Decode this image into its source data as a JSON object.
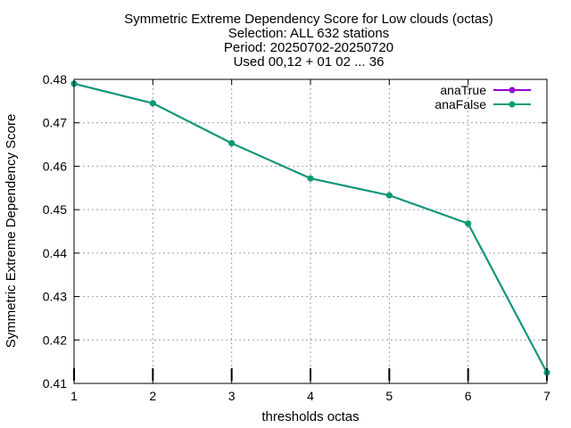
{
  "chart_data": {
    "type": "line",
    "title_lines": [
      "Symmetric Extreme Dependency Score  for Low clouds (octas)",
      "Selection: ALL    632 stations",
      "Period: 20250702-20250720",
      "Used 00,12 + 01 02 ... 36"
    ],
    "xlabel": "thresholds octas",
    "ylabel": "Symmetric Extreme Dependency Score",
    "x": [
      1,
      2,
      3,
      4,
      5,
      6,
      7
    ],
    "xlim": [
      1,
      7
    ],
    "ylim": [
      0.41,
      0.48
    ],
    "x_ticks": [
      "1",
      "2",
      "3",
      "4",
      "5",
      "6",
      "7"
    ],
    "y_ticks": [
      "0.41",
      "0.42",
      "0.43",
      "0.44",
      "0.45",
      "0.46",
      "0.47",
      "0.48"
    ],
    "grid": true,
    "legend_position": "top-right",
    "series": [
      {
        "name": "anaTrue",
        "color": "#9400d3",
        "marker": "filled-circle",
        "values": [
          0.479,
          0.4745,
          0.4653,
          0.4572,
          0.4533,
          0.4468,
          0.4125
        ]
      },
      {
        "name": "anaFalse",
        "color": "#009e73",
        "marker": "filled-circle",
        "values": [
          0.479,
          0.4745,
          0.4653,
          0.4572,
          0.4533,
          0.4468,
          0.4125
        ]
      }
    ]
  }
}
